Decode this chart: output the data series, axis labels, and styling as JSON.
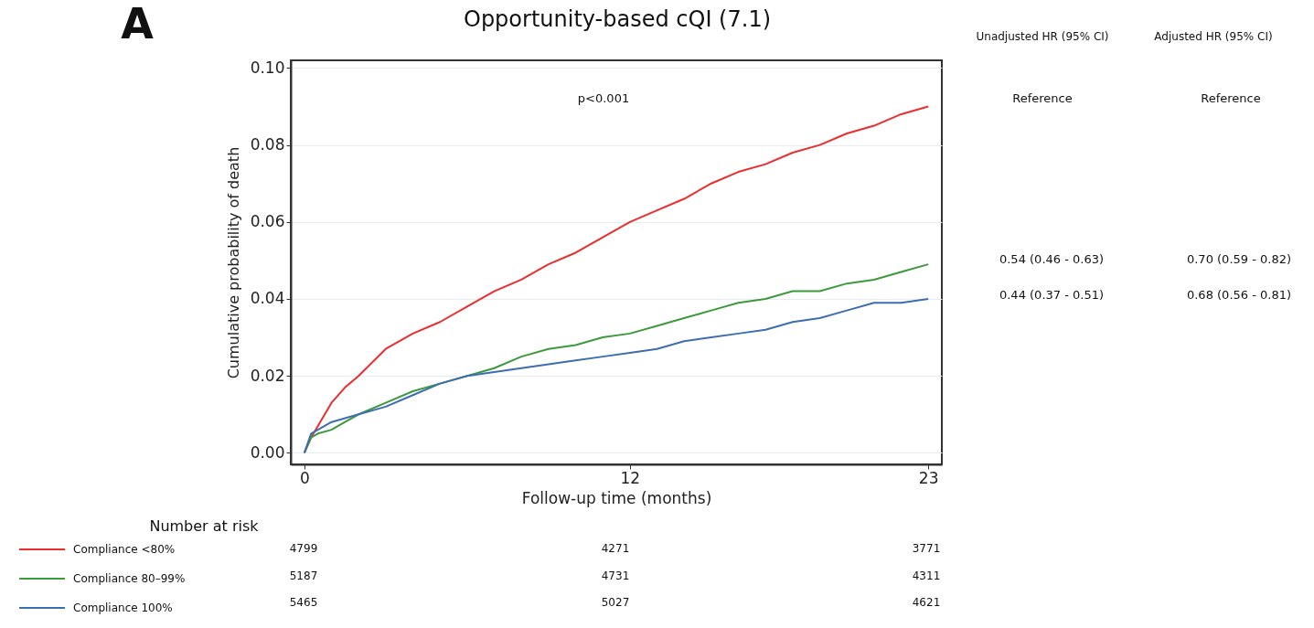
{
  "chart_data": {
    "type": "line",
    "title": "Opportunity-based cQI (7.1)",
    "xlabel": "Follow-up time (months)",
    "ylabel": "Cumulative probability of death",
    "x": [
      0,
      0.25,
      0.5,
      1,
      1.5,
      2,
      3,
      4,
      5,
      6,
      7,
      8,
      9,
      10,
      11,
      12,
      13,
      14,
      15,
      16,
      17,
      18,
      19,
      20,
      21,
      22,
      23
    ],
    "series": [
      {
        "name": "Compliance <80%",
        "color": "#ec2d2d",
        "values": [
          0,
          0.004,
          0.007,
          0.013,
          0.017,
          0.02,
          0.027,
          0.031,
          0.034,
          0.038,
          0.042,
          0.045,
          0.049,
          0.052,
          0.056,
          0.06,
          0.063,
          0.066,
          0.07,
          0.073,
          0.075,
          0.078,
          0.08,
          0.083,
          0.085,
          0.088,
          0.09
        ]
      },
      {
        "name": "Compliance 80–99%",
        "color": "#3c9a3c",
        "values": [
          0,
          0.004,
          0.005,
          0.006,
          0.008,
          0.01,
          0.013,
          0.016,
          0.018,
          0.02,
          0.022,
          0.025,
          0.027,
          0.028,
          0.03,
          0.031,
          0.033,
          0.035,
          0.037,
          0.039,
          0.04,
          0.042,
          0.042,
          0.044,
          0.045,
          0.047,
          0.049
        ]
      },
      {
        "name": "Compliance 100%",
        "color": "#3d6db3",
        "values": [
          0,
          0.005,
          0.006,
          0.008,
          0.009,
          0.01,
          0.012,
          0.015,
          0.018,
          0.02,
          0.021,
          0.022,
          0.023,
          0.024,
          0.025,
          0.026,
          0.027,
          0.029,
          0.03,
          0.031,
          0.032,
          0.034,
          0.035,
          0.037,
          0.039,
          0.039,
          0.04
        ]
      }
    ],
    "xlim": [
      -0.5,
      23.5
    ],
    "xticks": [
      0,
      12,
      23
    ],
    "ylim": [
      -0.003,
      0.102
    ],
    "yticks": [
      {
        "value": 0,
        "label": "0.00"
      },
      {
        "value": 0.02,
        "label": "0.02"
      },
      {
        "value": 0.04,
        "label": "0.04"
      },
      {
        "value": 0.06,
        "label": "0.06"
      },
      {
        "value": 0.08,
        "label": "0.08"
      },
      {
        "value": 0.1,
        "label": "0.10"
      }
    ],
    "grid": "y",
    "legend": "bottom left",
    "line_style": "solid",
    "marker": "none",
    "annotations": [
      "A",
      "p<0.001",
      "Unadjusted HR (95% CI)",
      "Adjusted HR (95% CI)",
      "Reference",
      "Reference",
      "0.54 (0.46 - 0.63)",
      "0.70 (0.59 - 0.82)",
      "0.44 (0.37 - 0.51)",
      "0.68 (0.56 - 0.81)",
      "Number at risk",
      "4799",
      "4271",
      "3771",
      "5187",
      "4731",
      "4311",
      "5465",
      "5027",
      "4621"
    ]
  }
}
